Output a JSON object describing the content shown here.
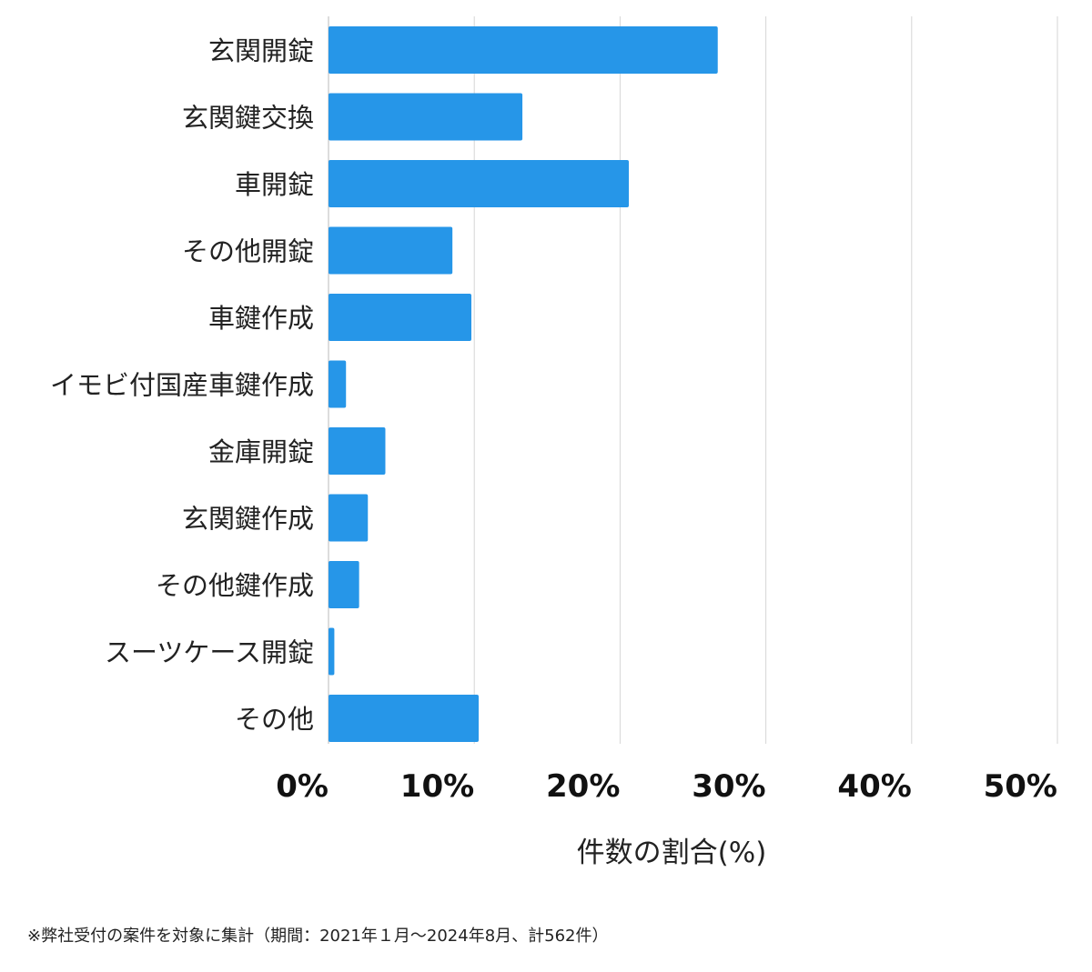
{
  "chart_data": {
    "type": "bar",
    "orientation": "horizontal",
    "categories": [
      "玄関開錠",
      "玄関鍵交換",
      "車開錠",
      "その他開錠",
      "車鍵作成",
      "イモビ付国産車鍵作成",
      "金庫開錠",
      "玄関鍵作成",
      "その他鍵作成",
      "スーツケース開錠",
      "その他"
    ],
    "values": [
      26.7,
      13.3,
      20.6,
      8.5,
      9.8,
      1.2,
      3.9,
      2.7,
      2.1,
      0.4,
      10.3
    ],
    "xlabel": "件数の割合(%)",
    "xlim": [
      0,
      50
    ],
    "xticks": [
      0,
      10,
      20,
      30,
      40,
      50
    ],
    "xtick_labels": [
      "0%",
      "10%",
      "20%",
      "30%",
      "40%",
      "50%"
    ],
    "grid": true,
    "bar_color": "#2696e8"
  },
  "footnote": "※弊社受付の案件を対象に集計（期間：2021年１月〜2024年8月、計562件）"
}
